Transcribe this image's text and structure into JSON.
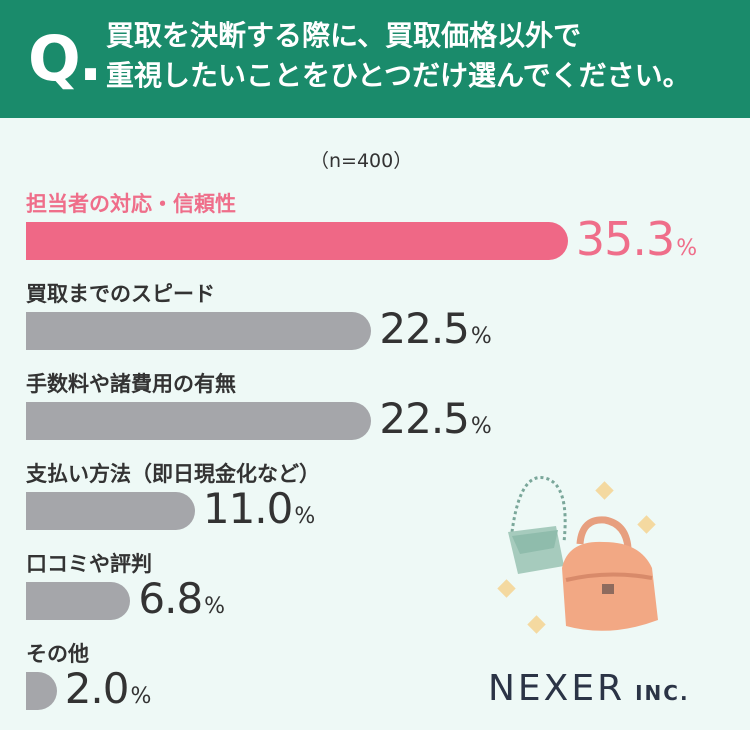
{
  "header": {
    "q_mark": "Q.",
    "question_line1": "買取を決断する際に、買取価格以外で",
    "question_line2": "重視したいことをひとつだけ選んでください。"
  },
  "sample_note": "（n=400）",
  "chart_data": {
    "type": "bar",
    "orientation": "horizontal",
    "categories": [
      "担当者の対応・信頼性",
      "買取までのスピード",
      "手数料や諸費用の有無",
      "支払い方法（即日現金化など）",
      "口コミや評判",
      "その他"
    ],
    "values": [
      35.3,
      22.5,
      22.5,
      11.0,
      6.8,
      2.0
    ],
    "value_labels": [
      "35.3",
      "22.5",
      "22.5",
      "11.0",
      "6.8",
      "2.0"
    ],
    "unit": "%",
    "highlight_index": 0,
    "colors": {
      "highlight": "#ef6886",
      "default": "#a5a6aa",
      "highlight_text": "#ef6e8a"
    }
  },
  "colors": {
    "header_bg": "#1a8b6b",
    "page_bg": "#eef9f6"
  },
  "illustration": {
    "icons": [
      "shoulder-bag-icon",
      "handbag-icon",
      "sparkle-icon"
    ]
  },
  "logo": {
    "main": "NEXER",
    "sub": "INC."
  }
}
